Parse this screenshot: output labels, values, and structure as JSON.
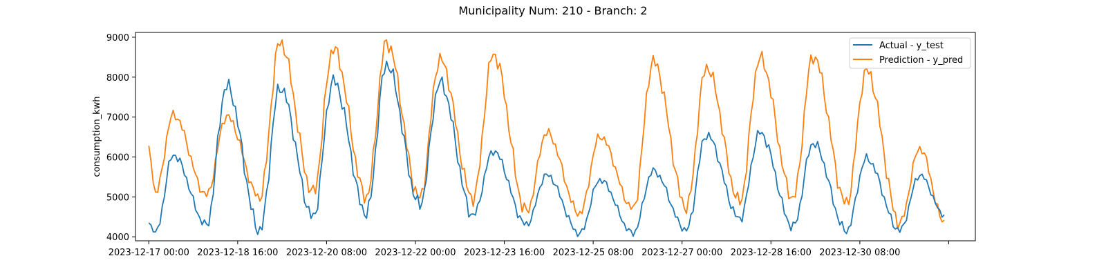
{
  "chart_data": {
    "type": "line",
    "title": "Municipality Num: 210 - Branch: 2",
    "xlabel": "",
    "ylabel": "consumption_kwh",
    "x_ticks": [
      "2023-12-17 00:00",
      "2023-12-18 16:00",
      "2023-12-20 08:00",
      "2023-12-22 00:00",
      "2023-12-23 16:00",
      "2023-12-25 08:00",
      "2023-12-27 00:00",
      "2023-12-28 16:00",
      "2023-12-30 08:00",
      ""
    ],
    "x_start": "2023-12-17 00:00",
    "x_step": "1h",
    "xlim": [
      "2023-12-16 18:00",
      "2024-01-01 12:00"
    ],
    "y_ticks": [
      4000,
      5000,
      6000,
      7000,
      8000,
      9000
    ],
    "ylim": [
      3900,
      9120
    ],
    "grid": false,
    "legend_position": "top-right",
    "series": [
      {
        "name": "Actual - y_test",
        "color": "#1f77b4",
        "daily_peaks": [
          6050,
          7780,
          7750,
          7910,
          8330,
          7860,
          6150,
          5550,
          5430,
          5650,
          6560,
          6610,
          6350,
          5960,
          5550
        ],
        "daily_troughs": [
          4100,
          4300,
          4150,
          4490,
          4580,
          4800,
          4530,
          4300,
          4080,
          4090,
          4170,
          4450,
          4250,
          4150,
          4160
        ],
        "end_value": 4550
      },
      {
        "name": "Prediction - y_pred",
        "color": "#ff7f0e",
        "daily_peaks": [
          7060,
          7020,
          8880,
          8720,
          8870,
          8450,
          8580,
          6610,
          6520,
          8390,
          8250,
          8480,
          8530,
          8170,
          6220
        ],
        "daily_troughs": [
          5100,
          5050,
          4980,
          5100,
          5000,
          4970,
          4960,
          4620,
          4580,
          4710,
          4740,
          4880,
          4970,
          4830,
          4350
        ],
        "end_value": 4380
      }
    ]
  }
}
